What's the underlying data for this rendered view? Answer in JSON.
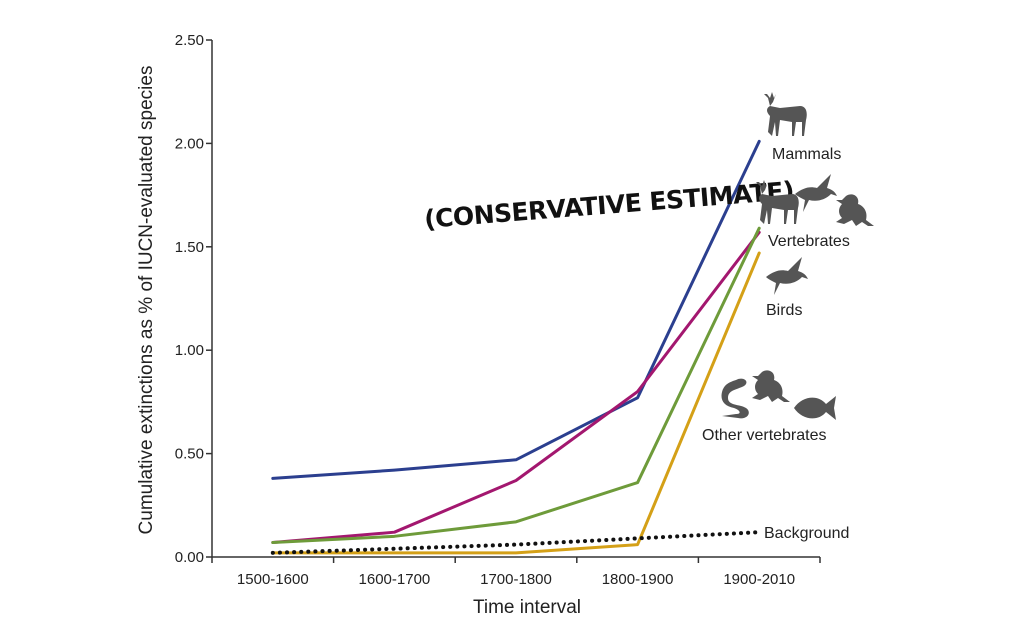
{
  "chart_data": {
    "type": "line",
    "annotation": "(CONSERVATIVE ESTIMATE)",
    "xlabel": "Time interval",
    "ylabel": "Cumulative extinctions as % of IUCN-evaluated species",
    "categories": [
      "1500-1600",
      "1600-1700",
      "1700-1800",
      "1800-1900",
      "1900-2010"
    ],
    "ylim": [
      0,
      2.5
    ],
    "yticks": [
      "0.00",
      "0.50",
      "1.00",
      "1.50",
      "2.00",
      "2.50"
    ],
    "ytick_values": [
      0,
      0.5,
      1.0,
      1.5,
      2.0,
      2.5
    ],
    "grid": false,
    "series": [
      {
        "name": "Mammals",
        "color": "#2b3f8f",
        "style": "solid",
        "values": [
          0.38,
          0.42,
          0.47,
          0.77,
          2.01
        ]
      },
      {
        "name": "Vertebrates",
        "color": "#a3176f",
        "style": "solid",
        "values": [
          0.07,
          0.12,
          0.37,
          0.8,
          1.57
        ]
      },
      {
        "name": "Birds",
        "color": "#6e9b3a",
        "style": "solid",
        "values": [
          0.07,
          0.1,
          0.17,
          0.36,
          1.59
        ]
      },
      {
        "name": "Other vertebrates",
        "color": "#d4a017",
        "style": "solid",
        "values": [
          0.02,
          0.02,
          0.02,
          0.06,
          1.47
        ]
      },
      {
        "name": "Background",
        "color": "#111111",
        "style": "dotted",
        "values": [
          0.02,
          0.04,
          0.06,
          0.09,
          0.12
        ]
      }
    ],
    "icons": [
      "deer-icon",
      "bird-icon",
      "frog-icon",
      "snake-icon",
      "fish-icon"
    ]
  }
}
